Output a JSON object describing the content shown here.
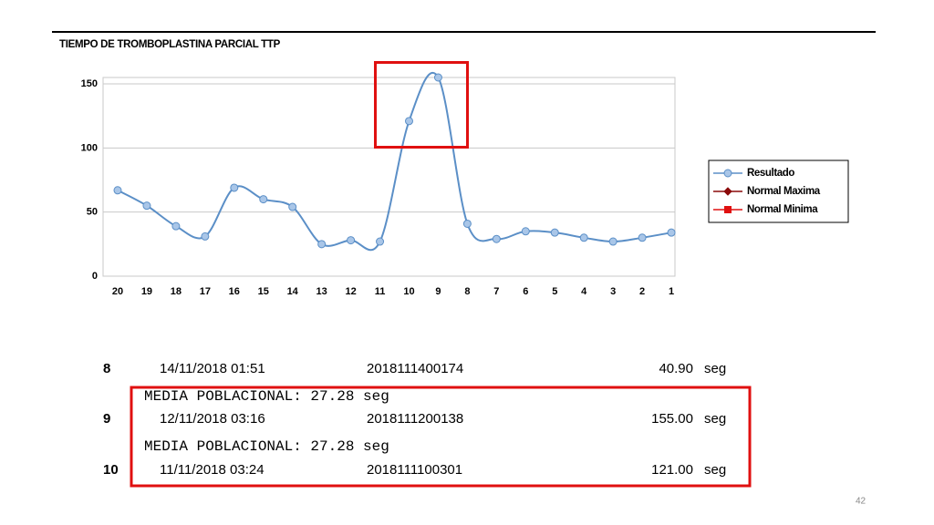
{
  "chart_data": {
    "type": "line",
    "title": "TIEMPO DE TROMBOPLASTINA PARCIAL  TTP",
    "categories": [
      "20",
      "19",
      "18",
      "17",
      "16",
      "15",
      "14",
      "13",
      "12",
      "11",
      "10",
      "9",
      "8",
      "7",
      "6",
      "5",
      "4",
      "3",
      "2",
      "1"
    ],
    "series": [
      {
        "name": "Resultado",
        "color": "#5b8fc7",
        "marker": "circle",
        "values": [
          67,
          55,
          39,
          31,
          69,
          60,
          54,
          25,
          28,
          27,
          121,
          155,
          40.9,
          29,
          35,
          34,
          30,
          27,
          30,
          34
        ]
      },
      {
        "name": "Normal Maxima",
        "color": "#8b0a0a",
        "marker": "diamond",
        "values": [
          null,
          null,
          null,
          null,
          null,
          null,
          null,
          null,
          null,
          null,
          null,
          null,
          null,
          null,
          null,
          null,
          null,
          null,
          null,
          null
        ]
      },
      {
        "name": "Normal Minima",
        "color": "#e01010",
        "marker": "square",
        "values": [
          null,
          null,
          null,
          null,
          null,
          null,
          null,
          null,
          null,
          null,
          null,
          null,
          null,
          null,
          null,
          null,
          null,
          null,
          null,
          null
        ]
      }
    ],
    "ylim": [
      0,
      155
    ],
    "yticks": [
      0,
      50,
      100,
      150
    ],
    "grid": true,
    "legend": "right"
  },
  "records": [
    {
      "cells": [
        "8",
        "14/11/2018 01:51",
        "2018111400174",
        "40.90",
        "seg"
      ]
    },
    {
      "note": "MEDIA POBLACIONAL: 27.28 seg"
    },
    {
      "cells": [
        "9",
        "12/11/2018 03:16",
        "2018111200138",
        "155.00",
        "seg"
      ]
    },
    {
      "note": "MEDIA POBLACIONAL: 27.28 seg"
    },
    {
      "cells": [
        "10",
        "11/11/2018 03:24",
        "2018111100301",
        "121.00",
        "seg"
      ]
    }
  ],
  "page_number": "42"
}
